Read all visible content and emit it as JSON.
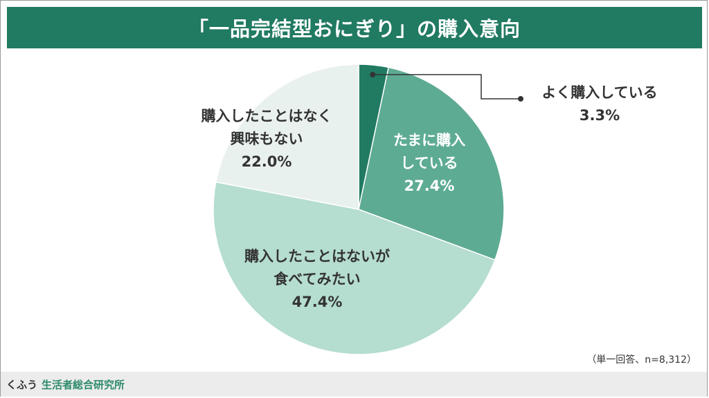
{
  "title": "「一品完結型おにぎり」の購入意向",
  "note": "（単一回答、n=8,312）",
  "footer": {
    "brand_prefix": "くふう",
    "brand_name": "生活者総合研究所"
  },
  "chart_data": {
    "type": "pie",
    "start_angle_deg": 0,
    "direction": "clockwise",
    "slices": [
      {
        "label_lines": [
          "よく購入している"
        ],
        "value": 3.3,
        "value_label": "3.3%",
        "color": "#217a62",
        "label_color": "#333333"
      },
      {
        "label_lines": [
          "たまに購入",
          "している"
        ],
        "value": 27.4,
        "value_label": "27.4%",
        "color": "#5eab93",
        "label_color": "#ffffff"
      },
      {
        "label_lines": [
          "購入したことはないが",
          "食べてみたい"
        ],
        "value": 47.4,
        "value_label": "47.4%",
        "color": "#b5ddd0",
        "label_color": "#333333"
      },
      {
        "label_lines": [
          "購入したことはなく",
          "興味もない"
        ],
        "value": 22.0,
        "value_label": "22.0%",
        "color": "#e9f1ee",
        "label_color": "#333333"
      }
    ]
  }
}
